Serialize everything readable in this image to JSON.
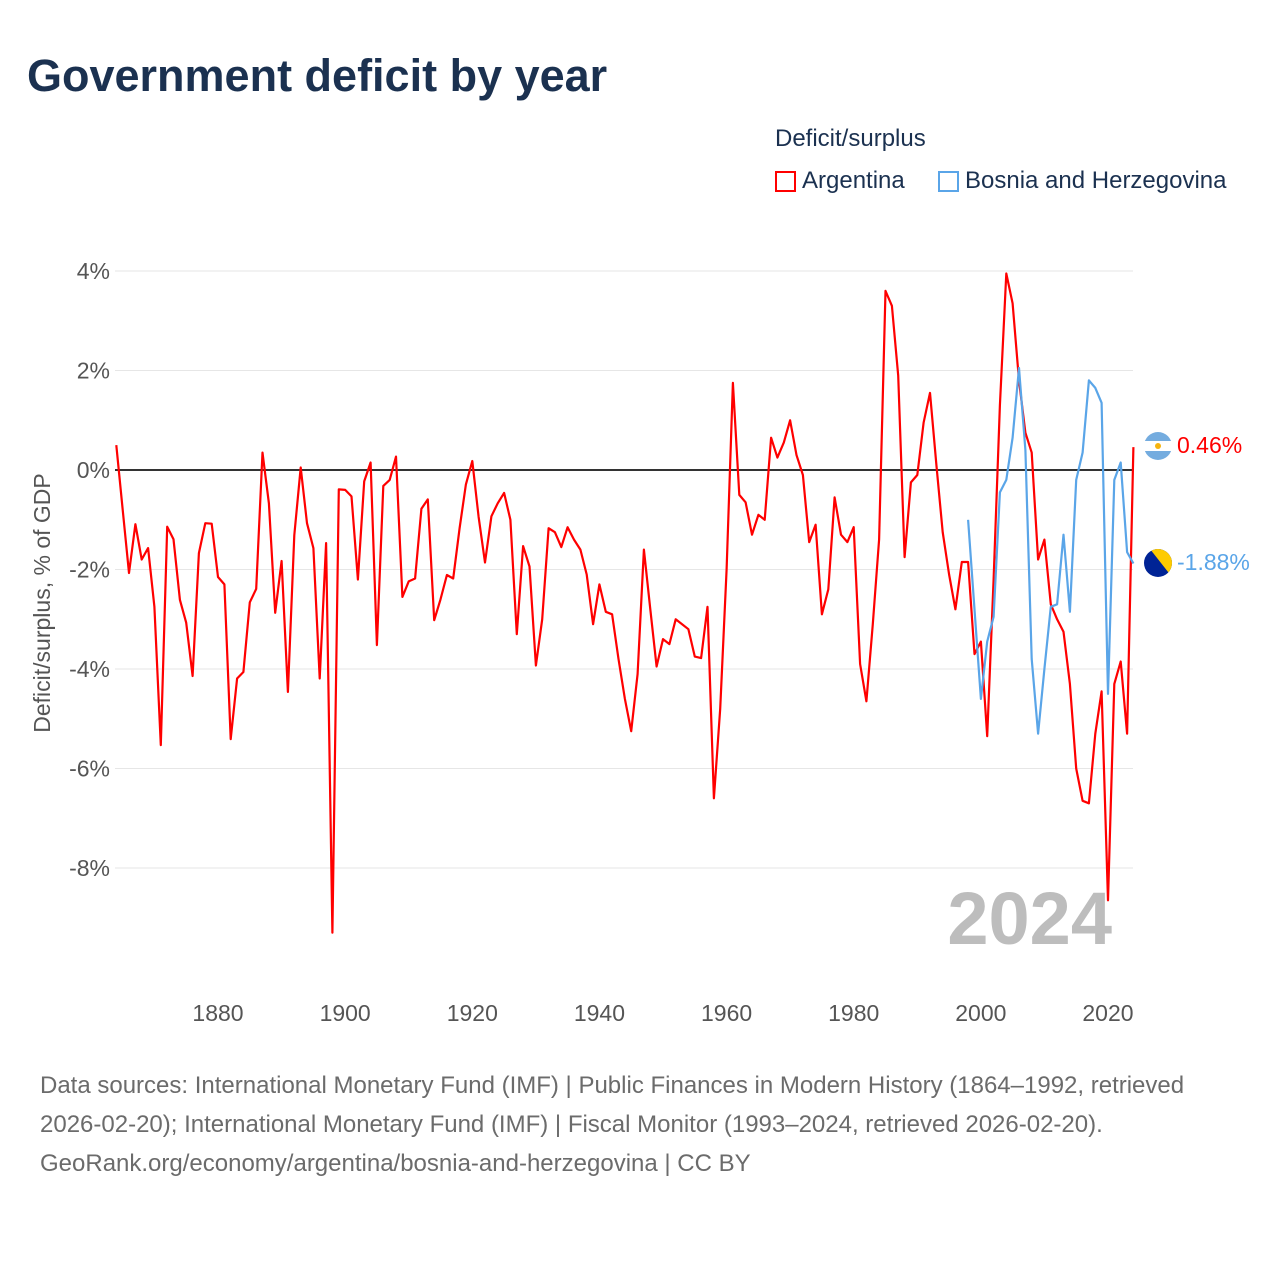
{
  "title": "Government deficit by year",
  "legend": {
    "title": "Deficit/surplus",
    "items": [
      {
        "label": "Argentina",
        "color": "#ff0000"
      },
      {
        "label": "Bosnia and Herzegovina",
        "color": "#5aa5e8"
      }
    ]
  },
  "year_overlay": "2024",
  "end_labels": {
    "argentina": "0.46%",
    "bosnia": "-1.88%"
  },
  "footer": {
    "sources": "Data sources: International Monetary Fund (IMF) | Public Finances in Modern History (1864–1992, retrieved 2026-02-20); International Monetary Fund (IMF) | Fiscal Monitor (1993–2024, retrieved 2026-02-20).",
    "credit": "GeoRank.org/economy/argentina/bosnia-and-herzegovina | CC BY"
  },
  "chart_data": {
    "type": "line",
    "title": "Government deficit by year",
    "ylabel": "Deficit/surplus, % of GDP",
    "xlabel": "",
    "xlim": [
      1864,
      2024
    ],
    "ylim": [
      -10,
      4.5
    ],
    "xticks": [
      1880,
      1900,
      1920,
      1940,
      1960,
      1980,
      2000,
      2020
    ],
    "xtick_labels": [
      "1880",
      "1900",
      "1920",
      "1940",
      "1960",
      "1980",
      "2000",
      "2020"
    ],
    "yticks": [
      4,
      2,
      0,
      -2,
      -4,
      -6,
      -8
    ],
    "ytick_labels": [
      "4%",
      "2%",
      "0%",
      "-2%",
      "-4%",
      "-6%",
      "-8%"
    ],
    "grid": true,
    "legend_position": "top-right",
    "series": [
      {
        "name": "Argentina",
        "color": "#ff0000",
        "start_year": 1864,
        "values": [
          0.5,
          -0.8,
          -2.07,
          -1.09,
          -1.8,
          -1.57,
          -2.75,
          -5.53,
          -1.14,
          -1.39,
          -2.61,
          -3.07,
          -4.14,
          -1.67,
          -1.07,
          -1.08,
          -2.15,
          -2.3,
          -5.41,
          -4.19,
          -4.06,
          -2.66,
          -2.39,
          0.35,
          -0.67,
          -2.87,
          -1.83,
          -4.46,
          -1.31,
          0.05,
          -1.07,
          -1.57,
          -4.19,
          -1.47,
          -9.3,
          -0.39,
          -0.4,
          -0.53,
          -2.2,
          -0.23,
          0.15,
          -3.52,
          -0.32,
          -0.2,
          0.27,
          -2.55,
          -2.24,
          -2.18,
          -0.78,
          -0.59,
          -3.02,
          -2.6,
          -2.11,
          -2.18,
          -1.17,
          -0.29,
          0.18,
          -0.94,
          -1.86,
          -0.93,
          -0.67,
          -0.46,
          -1.0,
          -3.3,
          -1.53,
          -1.94,
          -3.93,
          -3.0,
          -1.17,
          -1.25,
          -1.55,
          -1.15,
          -1.4,
          -1.6,
          -2.1,
          -3.1,
          -2.3,
          -2.85,
          -2.9,
          -3.8,
          -4.6,
          -5.25,
          -4.1,
          -1.6,
          -2.8,
          -3.95,
          -3.4,
          -3.5,
          -3.0,
          -3.1,
          -3.2,
          -3.75,
          -3.78,
          -2.75,
          -6.6,
          -4.8,
          -2.0,
          1.75,
          -0.5,
          -0.65,
          -1.3,
          -0.9,
          -1.0,
          0.65,
          0.25,
          0.55,
          1.0,
          0.3,
          -0.1,
          -1.45,
          -1.1,
          -2.9,
          -2.4,
          -0.55,
          -1.3,
          -1.45,
          -1.15,
          -3.9,
          -4.65,
          -3.1,
          -1.4,
          3.6,
          3.3,
          1.9,
          -1.75,
          -0.25,
          -0.1,
          0.95,
          1.55,
          0.1,
          -1.25,
          -2.1,
          -2.8,
          -1.85,
          -1.85,
          -3.7,
          -3.45,
          -5.35,
          -2.2,
          1.3,
          3.95,
          3.35,
          1.8,
          0.75,
          0.35,
          -1.8,
          -1.4,
          -2.7,
          -3.0,
          -3.25,
          -4.3,
          -6.0,
          -6.65,
          -6.7,
          -5.3,
          -4.45,
          -8.65,
          -4.3,
          -3.85,
          -5.3,
          0.46
        ]
      },
      {
        "name": "Bosnia and Herzegovina",
        "color": "#5aa5e8",
        "start_year": 1998,
        "values": [
          -1.0,
          -2.8,
          -4.6,
          -3.45,
          -2.95,
          -0.45,
          -0.2,
          0.65,
          2.05,
          0.4,
          -3.8,
          -5.3,
          -4.0,
          -2.75,
          -2.7,
          -1.3,
          -2.85,
          -0.2,
          0.35,
          1.8,
          1.65,
          1.35,
          -4.5,
          -0.2,
          0.15,
          -1.65,
          -1.88
        ]
      }
    ]
  }
}
